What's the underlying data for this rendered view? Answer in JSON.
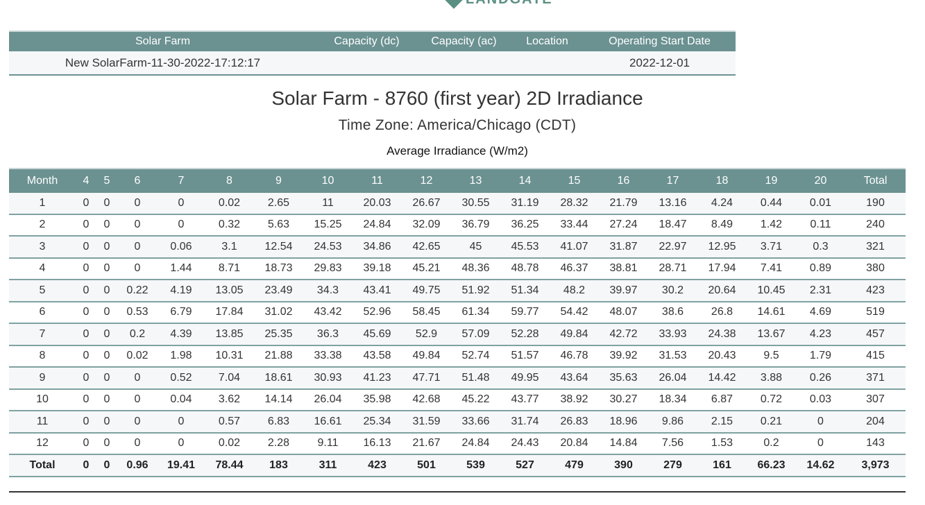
{
  "logo": {
    "text": "LANDGATE"
  },
  "summary": {
    "headers": [
      "Solar Farm",
      "Capacity (dc)",
      "Capacity (ac)",
      "Location",
      "Operating Start Date"
    ],
    "row": [
      "New SolarFarm-11-30-2022-17:12:17",
      "",
      "",
      "",
      "2022-12-01"
    ]
  },
  "report": {
    "title": "Solar Farm - 8760 (first year) 2D Irradiance",
    "timezone": "Time Zone: America/Chicago (CDT)",
    "table_caption": "Average Irradiance (W/m2)"
  },
  "irradiance": {
    "headers": [
      "Month",
      "4",
      "5",
      "6",
      "7",
      "8",
      "9",
      "10",
      "11",
      "12",
      "13",
      "14",
      "15",
      "16",
      "17",
      "18",
      "19",
      "20",
      "Total"
    ],
    "rows": [
      [
        "1",
        "0",
        "0",
        "0",
        "0",
        "0.02",
        "2.65",
        "11",
        "20.03",
        "26.67",
        "30.55",
        "31.19",
        "28.32",
        "21.79",
        "13.16",
        "4.24",
        "0.44",
        "0.01",
        "190"
      ],
      [
        "2",
        "0",
        "0",
        "0",
        "0",
        "0.32",
        "5.63",
        "15.25",
        "24.84",
        "32.09",
        "36.79",
        "36.25",
        "33.44",
        "27.24",
        "18.47",
        "8.49",
        "1.42",
        "0.11",
        "240"
      ],
      [
        "3",
        "0",
        "0",
        "0",
        "0.06",
        "3.1",
        "12.54",
        "24.53",
        "34.86",
        "42.65",
        "45",
        "45.53",
        "41.07",
        "31.87",
        "22.97",
        "12.95",
        "3.71",
        "0.3",
        "321"
      ],
      [
        "4",
        "0",
        "0",
        "0",
        "1.44",
        "8.71",
        "18.73",
        "29.83",
        "39.18",
        "45.21",
        "48.36",
        "48.78",
        "46.37",
        "38.81",
        "28.71",
        "17.94",
        "7.41",
        "0.89",
        "380"
      ],
      [
        "5",
        "0",
        "0",
        "0.22",
        "4.19",
        "13.05",
        "23.49",
        "34.3",
        "43.41",
        "49.75",
        "51.92",
        "51.34",
        "48.2",
        "39.97",
        "30.2",
        "20.64",
        "10.45",
        "2.31",
        "423"
      ],
      [
        "6",
        "0",
        "0",
        "0.53",
        "6.79",
        "17.84",
        "31.02",
        "43.42",
        "52.96",
        "58.45",
        "61.34",
        "59.77",
        "54.42",
        "48.07",
        "38.6",
        "26.8",
        "14.61",
        "4.69",
        "519"
      ],
      [
        "7",
        "0",
        "0",
        "0.2",
        "4.39",
        "13.85",
        "25.35",
        "36.3",
        "45.69",
        "52.9",
        "57.09",
        "52.28",
        "49.84",
        "42.72",
        "33.93",
        "24.38",
        "13.67",
        "4.23",
        "457"
      ],
      [
        "8",
        "0",
        "0",
        "0.02",
        "1.98",
        "10.31",
        "21.88",
        "33.38",
        "43.58",
        "49.84",
        "52.74",
        "51.57",
        "46.78",
        "39.92",
        "31.53",
        "20.43",
        "9.5",
        "1.79",
        "415"
      ],
      [
        "9",
        "0",
        "0",
        "0",
        "0.52",
        "7.04",
        "18.61",
        "30.93",
        "41.23",
        "47.71",
        "51.48",
        "49.95",
        "43.64",
        "35.63",
        "26.04",
        "14.42",
        "3.88",
        "0.26",
        "371"
      ],
      [
        "10",
        "0",
        "0",
        "0",
        "0.04",
        "3.62",
        "14.14",
        "26.04",
        "35.98",
        "42.68",
        "45.22",
        "43.77",
        "38.92",
        "30.27",
        "18.34",
        "6.87",
        "0.72",
        "0.03",
        "307"
      ],
      [
        "11",
        "0",
        "0",
        "0",
        "0",
        "0.57",
        "6.83",
        "16.61",
        "25.34",
        "31.59",
        "33.66",
        "31.74",
        "26.83",
        "18.96",
        "9.86",
        "2.15",
        "0.21",
        "0",
        "204"
      ],
      [
        "12",
        "0",
        "0",
        "0",
        "0",
        "0.02",
        "2.28",
        "9.11",
        "16.13",
        "21.67",
        "24.84",
        "24.43",
        "20.84",
        "14.84",
        "7.56",
        "1.53",
        "0.2",
        "0",
        "143"
      ]
    ],
    "total_row": [
      "Total",
      "0",
      "0",
      "0.96",
      "19.41",
      "78.44",
      "183",
      "311",
      "423",
      "501",
      "539",
      "527",
      "479",
      "390",
      "279",
      "161",
      "66.23",
      "14.62",
      "3,973"
    ]
  },
  "colors": {
    "header_bg": "#6b9191",
    "stripe": "#f6f7f9",
    "logo": "#5b8f82"
  }
}
